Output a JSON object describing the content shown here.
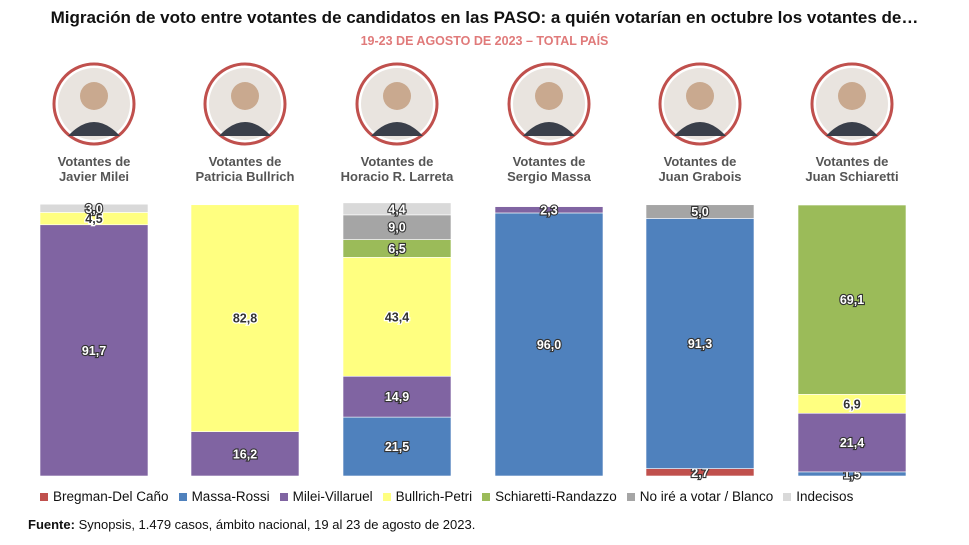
{
  "title": "Migración de voto entre votantes de candidatos en las PASO: a quién votarían en octubre los votantes de…",
  "subtitle": "19-23 DE AGOSTO DE 2023 – TOTAL PAÍS",
  "source_label": "Fuente:",
  "source_text": " Synopsis, 1.479 casos, ámbito nacional, 19 al 23 de agosto de 2023.",
  "colors": {
    "Bregman-Del Caño": "#c0504d",
    "Massa-Rossi": "#4f81bd",
    "Milei-Villaruel": "#8064a2",
    "Bullrich-Petri": "#ffff80",
    "Schiaretti-Randazzo": "#9bbb59",
    "No iré a votar / Blanco": "#a5a5a5",
    "Indecisos": "#d9d9d9"
  },
  "chart_data": {
    "type": "bar",
    "stacked": true,
    "title": "Migración de voto entre votantes de candidatos en las PASO: a quién votarían en octubre los votantes de…",
    "subtitle": "19-23 DE AGOSTO DE 2023 – TOTAL PAÍS",
    "ylim": [
      0,
      100
    ],
    "legend_position": "bottom",
    "categories": [
      [
        "Votantes de",
        "Javier Milei"
      ],
      [
        "Votantes de",
        "Patricia Bullrich"
      ],
      [
        "Votantes de",
        "Horacio R. Larreta"
      ],
      [
        "Votantes de",
        "Sergio Massa"
      ],
      [
        "Votantes de",
        "Juan Grabois"
      ],
      [
        "Votantes de",
        "Juan Schiaretti"
      ]
    ],
    "series": [
      {
        "name": "Bregman-Del Caño",
        "values": [
          0,
          0,
          0,
          0,
          2.7,
          0
        ]
      },
      {
        "name": "Massa-Rossi",
        "values": [
          0,
          0,
          21.5,
          96.0,
          91.3,
          1.5
        ]
      },
      {
        "name": "Milei-Villaruel",
        "values": [
          91.7,
          16.2,
          14.9,
          2.3,
          0,
          21.4
        ]
      },
      {
        "name": "Bullrich-Petri",
        "values": [
          4.5,
          82.8,
          43.4,
          0,
          0,
          6.9
        ]
      },
      {
        "name": "Schiaretti-Randazzo",
        "values": [
          0,
          0,
          6.5,
          0,
          0,
          69.1
        ]
      },
      {
        "name": "No iré a votar / Blanco",
        "values": [
          0,
          0,
          9.0,
          0,
          5.0,
          0
        ]
      },
      {
        "name": "Indecisos",
        "values": [
          3.0,
          0,
          4.4,
          0,
          0,
          0
        ]
      }
    ],
    "labels": [
      [
        "",
        "",
        "91,7",
        "4,5",
        "",
        "",
        "3,0"
      ],
      [
        "",
        "",
        "16,2",
        "82,8",
        "",
        "",
        ""
      ],
      [
        "",
        "21,5",
        "14,9",
        "43,4",
        "6,5",
        "9,0",
        "4,4"
      ],
      [
        "",
        "96,0",
        "2,3",
        "",
        "",
        "",
        ""
      ],
      [
        "2,7",
        "91,3",
        "",
        "",
        "",
        "5,0",
        ""
      ],
      [
        "",
        "1,5",
        "21,4",
        "6,9",
        "69,1",
        "",
        ""
      ]
    ]
  }
}
